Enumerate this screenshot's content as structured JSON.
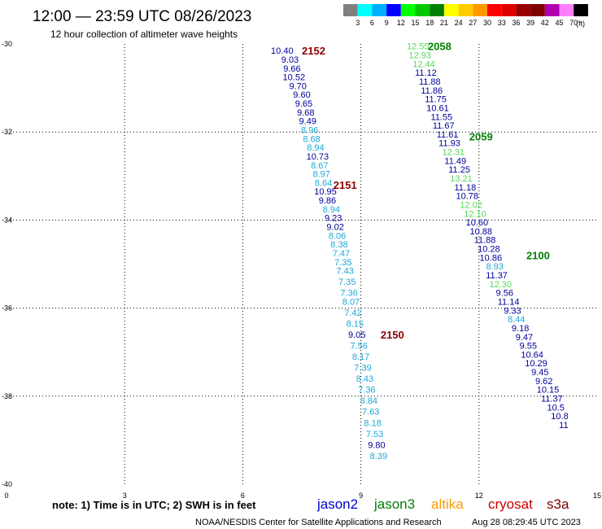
{
  "header": {
    "title": "12:00 — 23:59 UTC 08/26/2023",
    "subtitle": "12 hour collection of altimeter wave heights",
    "scale_unit": "(ft)",
    "scale_labels": [
      "3",
      "6",
      "9",
      "12",
      "15",
      "18",
      "21",
      "24",
      "27",
      "30",
      "33",
      "36",
      "39",
      "42",
      "45",
      "70"
    ],
    "scale_colors": [
      "#808080",
      "#00ffff",
      "#00b0ff",
      "#0000ff",
      "#00ff00",
      "#00c800",
      "#008000",
      "#ffff00",
      "#ffcc00",
      "#ff9900",
      "#ff0000",
      "#e00000",
      "#990000",
      "#800000",
      "#b000b0",
      "#ff80ff",
      "#000000"
    ]
  },
  "footer": {
    "note": "note:  1) Time is in UTC; 2) SWH is in feet",
    "credit": "NOAA/NESDIS Center for Satellite Applications and Research",
    "timestamp": "Aug 28 08:29:45 UTC 2023",
    "satellites": [
      {
        "name": "jason2",
        "color": "#0000cc"
      },
      {
        "name": "jason3",
        "color": "#008000"
      },
      {
        "name": "altika",
        "color": "#ff9900"
      },
      {
        "name": "cryosat",
        "color": "#cc0000"
      },
      {
        "name": "s3a",
        "color": "#800000"
      }
    ]
  },
  "chart_data": {
    "type": "scatter",
    "title": "12:00 — 23:59 UTC 08/26/2023",
    "xlim": [
      0,
      15
    ],
    "ylim": [
      -40,
      -30
    ],
    "x_ticks": [
      "0",
      "3",
      "6",
      "9",
      "12",
      "15"
    ],
    "y_ticks": [
      "-30",
      "-32",
      "-34",
      "-36",
      "-38",
      "-40"
    ],
    "grid": "dotted",
    "colors": {
      "navy": "#000099",
      "sky": "#1ea8d8",
      "lightgreen": "#5ad85a",
      "green": "#008000",
      "darkred": "#880000"
    },
    "tracks": [
      {
        "name": "2152",
        "label_color": "darkred",
        "label_pos": [
          7.8,
          -30.15
        ]
      },
      {
        "name": "2151",
        "label_color": "darkred",
        "label_pos": [
          8.6,
          -33.2
        ]
      },
      {
        "name": "2150",
        "label_color": "darkred",
        "label_pos": [
          9.8,
          -36.6
        ]
      },
      {
        "name": "2058",
        "label_color": "green",
        "label_pos": [
          11.0,
          -30.05
        ]
      },
      {
        "name": "2059",
        "label_color": "green",
        "label_pos": [
          12.05,
          -32.1
        ]
      },
      {
        "name": "2100",
        "label_color": "green",
        "label_pos": [
          13.5,
          -34.8
        ]
      }
    ],
    "points": [
      {
        "v": "10.40",
        "x": 7.0,
        "y": -30.15,
        "c": "navy"
      },
      {
        "v": "9.03",
        "x": 7.2,
        "y": -30.35,
        "c": "navy"
      },
      {
        "v": "9.66",
        "x": 7.25,
        "y": -30.55,
        "c": "navy"
      },
      {
        "v": "10.52",
        "x": 7.3,
        "y": -30.75,
        "c": "navy"
      },
      {
        "v": "9.70",
        "x": 7.4,
        "y": -30.95,
        "c": "navy"
      },
      {
        "v": "9.60",
        "x": 7.5,
        "y": -31.15,
        "c": "navy"
      },
      {
        "v": "9.65",
        "x": 7.55,
        "y": -31.35,
        "c": "navy"
      },
      {
        "v": "9.68",
        "x": 7.6,
        "y": -31.55,
        "c": "navy"
      },
      {
        "v": "9.49",
        "x": 7.65,
        "y": -31.75,
        "c": "navy"
      },
      {
        "v": "8.96",
        "x": 7.7,
        "y": -31.95,
        "c": "sky"
      },
      {
        "v": "8.68",
        "x": 7.75,
        "y": -32.15,
        "c": "sky"
      },
      {
        "v": "8.94",
        "x": 7.85,
        "y": -32.35,
        "c": "sky"
      },
      {
        "v": "10.73",
        "x": 7.9,
        "y": -32.55,
        "c": "navy"
      },
      {
        "v": "8.67",
        "x": 7.95,
        "y": -32.75,
        "c": "sky"
      },
      {
        "v": "8.97",
        "x": 8.0,
        "y": -32.95,
        "c": "sky"
      },
      {
        "v": "8.64",
        "x": 8.05,
        "y": -33.15,
        "c": "sky"
      },
      {
        "v": "10.95",
        "x": 8.1,
        "y": -33.35,
        "c": "navy"
      },
      {
        "v": "9.86",
        "x": 8.15,
        "y": -33.55,
        "c": "navy"
      },
      {
        "v": "8.94",
        "x": 8.25,
        "y": -33.75,
        "c": "sky"
      },
      {
        "v": "9.23",
        "x": 8.3,
        "y": -33.95,
        "c": "navy"
      },
      {
        "v": "9.02",
        "x": 8.35,
        "y": -34.15,
        "c": "navy"
      },
      {
        "v": "8.06",
        "x": 8.4,
        "y": -34.35,
        "c": "sky"
      },
      {
        "v": "8.38",
        "x": 8.45,
        "y": -34.55,
        "c": "sky"
      },
      {
        "v": "7.47",
        "x": 8.5,
        "y": -34.75,
        "c": "sky"
      },
      {
        "v": "7.35",
        "x": 8.55,
        "y": -34.95,
        "c": "sky"
      },
      {
        "v": "7.43",
        "x": 8.6,
        "y": -35.15,
        "c": "sky"
      },
      {
        "v": "7.35",
        "x": 8.65,
        "y": -35.4,
        "c": "sky"
      },
      {
        "v": "7.36",
        "x": 8.7,
        "y": -35.65,
        "c": "sky"
      },
      {
        "v": "8.07",
        "x": 8.75,
        "y": -35.85,
        "c": "sky"
      },
      {
        "v": "7.42",
        "x": 8.8,
        "y": -36.1,
        "c": "sky"
      },
      {
        "v": "8.15",
        "x": 8.85,
        "y": -36.35,
        "c": "sky"
      },
      {
        "v": "9.05",
        "x": 8.9,
        "y": -36.6,
        "c": "navy"
      },
      {
        "v": "7.56",
        "x": 8.95,
        "y": -36.85,
        "c": "sky"
      },
      {
        "v": "8.17",
        "x": 9.0,
        "y": -37.1,
        "c": "sky"
      },
      {
        "v": "7.39",
        "x": 9.05,
        "y": -37.35,
        "c": "sky"
      },
      {
        "v": "8.43",
        "x": 9.1,
        "y": -37.6,
        "c": "sky"
      },
      {
        "v": "7.36",
        "x": 9.15,
        "y": -37.85,
        "c": "sky"
      },
      {
        "v": "8.84",
        "x": 9.2,
        "y": -38.1,
        "c": "sky"
      },
      {
        "v": "7.63",
        "x": 9.25,
        "y": -38.35,
        "c": "sky"
      },
      {
        "v": "8.18",
        "x": 9.3,
        "y": -38.6,
        "c": "sky"
      },
      {
        "v": "7.53",
        "x": 9.35,
        "y": -38.85,
        "c": "sky"
      },
      {
        "v": "9.80",
        "x": 9.4,
        "y": -39.1,
        "c": "navy"
      },
      {
        "v": "8.39",
        "x": 9.45,
        "y": -39.35,
        "c": "sky"
      },
      {
        "v": "12.55",
        "x": 10.45,
        "y": -30.05,
        "c": "lightgreen"
      },
      {
        "v": "12.93",
        "x": 10.5,
        "y": -30.25,
        "c": "lightgreen"
      },
      {
        "v": "12.44",
        "x": 10.6,
        "y": -30.45,
        "c": "lightgreen"
      },
      {
        "v": "11.12",
        "x": 10.65,
        "y": -30.65,
        "c": "navy"
      },
      {
        "v": "11.88",
        "x": 10.75,
        "y": -30.85,
        "c": "navy"
      },
      {
        "v": "11.86",
        "x": 10.8,
        "y": -31.05,
        "c": "navy"
      },
      {
        "v": "11.75",
        "x": 10.9,
        "y": -31.25,
        "c": "navy"
      },
      {
        "v": "10.61",
        "x": 10.95,
        "y": -31.45,
        "c": "navy"
      },
      {
        "v": "11.55",
        "x": 11.05,
        "y": -31.65,
        "c": "navy"
      },
      {
        "v": "11.67",
        "x": 11.1,
        "y": -31.85,
        "c": "navy"
      },
      {
        "v": "11.61",
        "x": 11.2,
        "y": -32.05,
        "c": "navy"
      },
      {
        "v": "11.93",
        "x": 11.25,
        "y": -32.25,
        "c": "navy"
      },
      {
        "v": "12.31",
        "x": 11.35,
        "y": -32.45,
        "c": "lightgreen"
      },
      {
        "v": "11.49",
        "x": 11.4,
        "y": -32.65,
        "c": "navy"
      },
      {
        "v": "11.25",
        "x": 11.5,
        "y": -32.85,
        "c": "navy"
      },
      {
        "v": "13.21",
        "x": 11.55,
        "y": -33.05,
        "c": "lightgreen"
      },
      {
        "v": "11.18",
        "x": 11.65,
        "y": -33.25,
        "c": "navy"
      },
      {
        "v": "10.78",
        "x": 11.7,
        "y": -33.45,
        "c": "navy"
      },
      {
        "v": "12.02",
        "x": 11.8,
        "y": -33.65,
        "c": "lightgreen"
      },
      {
        "v": "12.10",
        "x": 11.9,
        "y": -33.85,
        "c": "lightgreen"
      },
      {
        "v": "10.60",
        "x": 11.95,
        "y": -34.05,
        "c": "navy"
      },
      {
        "v": "10.88",
        "x": 12.05,
        "y": -34.25,
        "c": "navy"
      },
      {
        "v": "11.88",
        "x": 12.15,
        "y": -34.45,
        "c": "navy"
      },
      {
        "v": "10.28",
        "x": 12.25,
        "y": -34.65,
        "c": "navy"
      },
      {
        "v": "10.86",
        "x": 12.3,
        "y": -34.85,
        "c": "navy"
      },
      {
        "v": "8.93",
        "x": 12.4,
        "y": -35.05,
        "c": "sky"
      },
      {
        "v": "11.37",
        "x": 12.45,
        "y": -35.25,
        "c": "navy"
      },
      {
        "v": "12.30",
        "x": 12.55,
        "y": -35.45,
        "c": "lightgreen"
      },
      {
        "v": "9.56",
        "x": 12.65,
        "y": -35.65,
        "c": "navy"
      },
      {
        "v": "11.14",
        "x": 12.75,
        "y": -35.85,
        "c": "navy"
      },
      {
        "v": "9.33",
        "x": 12.85,
        "y": -36.05,
        "c": "navy"
      },
      {
        "v": "8.44",
        "x": 12.95,
        "y": -36.25,
        "c": "sky"
      },
      {
        "v": "9.18",
        "x": 13.05,
        "y": -36.45,
        "c": "navy"
      },
      {
        "v": "9.47",
        "x": 13.15,
        "y": -36.65,
        "c": "navy"
      },
      {
        "v": "9.55",
        "x": 13.25,
        "y": -36.85,
        "c": "navy"
      },
      {
        "v": "10.64",
        "x": 13.35,
        "y": -37.05,
        "c": "navy"
      },
      {
        "v": "10.29",
        "x": 13.45,
        "y": -37.25,
        "c": "navy"
      },
      {
        "v": "9.45",
        "x": 13.55,
        "y": -37.45,
        "c": "navy"
      },
      {
        "v": "9.62",
        "x": 13.65,
        "y": -37.65,
        "c": "navy"
      },
      {
        "v": "10.15",
        "x": 13.75,
        "y": -37.85,
        "c": "navy"
      },
      {
        "v": "11.37",
        "x": 13.85,
        "y": -38.05,
        "c": "navy"
      },
      {
        "v": "10.5",
        "x": 13.95,
        "y": -38.25,
        "c": "navy"
      },
      {
        "v": "10.8",
        "x": 14.05,
        "y": -38.45,
        "c": "navy"
      },
      {
        "v": "11",
        "x": 14.15,
        "y": -38.65,
        "c": "navy"
      }
    ]
  }
}
